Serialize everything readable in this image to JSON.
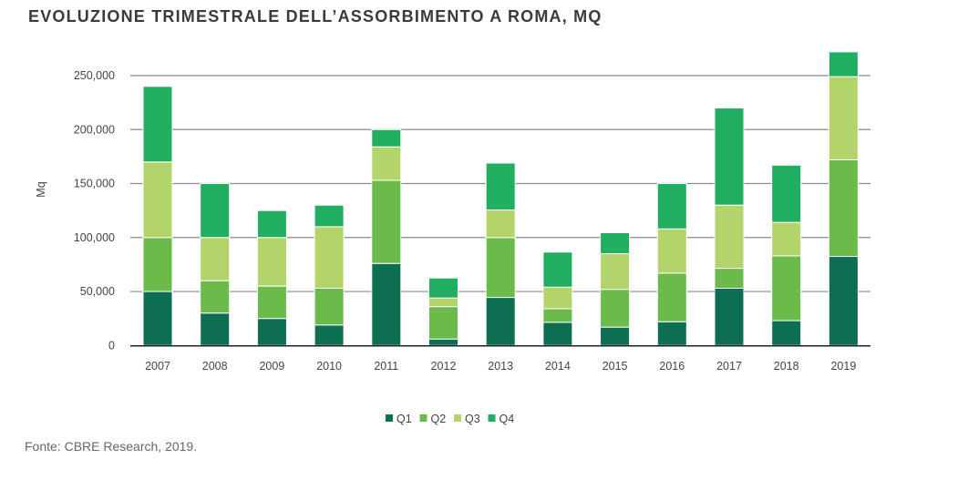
{
  "chart_data": {
    "type": "bar",
    "stacked": true,
    "title": "EVOLUZIONE TRIMESTRALE DELL’ASSORBIMENTO A ROMA, MQ",
    "ylabel": "Mq",
    "xlabel": "",
    "ylim": [
      0,
      250000
    ],
    "yticks": [
      0,
      50000,
      100000,
      150000,
      200000,
      250000
    ],
    "ytick_labels": [
      "0",
      "50,000",
      "100,000",
      "150,000",
      "200,000",
      "250,000"
    ],
    "grid": true,
    "legend_position": "bottom",
    "categories": [
      "2007",
      "2008",
      "2009",
      "2010",
      "2011",
      "2012",
      "2013",
      "2014",
      "2015",
      "2016",
      "2017",
      "2018",
      "2019"
    ],
    "series": [
      {
        "name": "Q1",
        "color": "#0e6e52",
        "values": [
          50000,
          30000,
          25000,
          19000,
          76000,
          6000,
          44500,
          21500,
          17000,
          22000,
          53000,
          23000,
          82500
        ]
      },
      {
        "name": "Q2",
        "color": "#6abb4a",
        "values": [
          50000,
          30000,
          30000,
          34000,
          77000,
          30000,
          55500,
          12500,
          35000,
          45000,
          18500,
          60000,
          89500
        ]
      },
      {
        "name": "Q3",
        "color": "#b3d46a",
        "values": [
          70000,
          40000,
          45000,
          57000,
          31000,
          8000,
          25500,
          20000,
          33000,
          41000,
          58500,
          31000,
          77000
        ]
      },
      {
        "name": "Q4",
        "color": "#22ae60",
        "values": [
          70000,
          50000,
          25000,
          20000,
          16000,
          18500,
          43500,
          32500,
          19500,
          42000,
          90000,
          53000,
          23000
        ]
      }
    ]
  },
  "source": "Fonte: CBRE Research, 2019."
}
